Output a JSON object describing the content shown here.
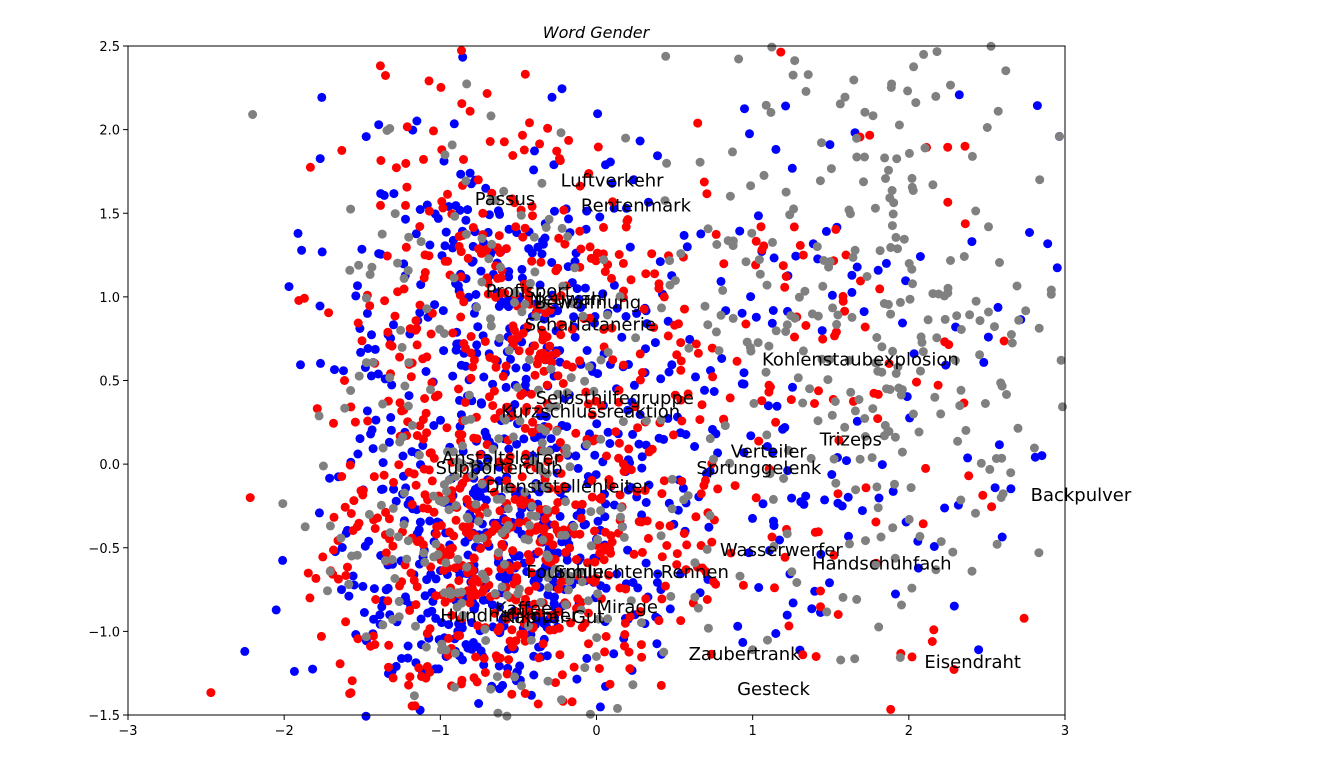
{
  "chart_data": {
    "type": "scatter",
    "title": "Word Gender",
    "xlabel": "",
    "ylabel": "",
    "xlim": [
      -3,
      3
    ],
    "ylim": [
      -1.5,
      2.5
    ],
    "x_ticks": [
      -3,
      -2,
      -1,
      0,
      1,
      2,
      3
    ],
    "y_ticks": [
      -1.5,
      -1.0,
      -0.5,
      0.0,
      0.5,
      1.0,
      1.5,
      2.0,
      2.5
    ],
    "x_tick_labels": [
      "−3",
      "−2",
      "−1",
      "0",
      "1",
      "2",
      "3"
    ],
    "y_tick_labels": [
      "−1.5",
      "−1.0",
      "−0.5",
      "0.0",
      "0.5",
      "1.0",
      "1.5",
      "2.0",
      "2.5"
    ],
    "grid": false,
    "series_colors": [
      "#0000ff",
      "#ff0000",
      "#808080"
    ],
    "series": [
      {
        "color": "#0000ff",
        "approx_count": 900
      },
      {
        "color": "#ff0000",
        "approx_count": 900
      },
      {
        "color": "#808080",
        "approx_count": 600
      }
    ],
    "annotations": [
      {
        "text": "Luftverkehr",
        "x": -0.23,
        "y": 1.66
      },
      {
        "text": "Passus",
        "x": -0.78,
        "y": 1.55
      },
      {
        "text": "Rentenmark",
        "x": -0.1,
        "y": 1.51
      },
      {
        "text": "Profisport",
        "x": -0.71,
        "y": 1.0
      },
      {
        "text": "Neuwahl",
        "x": -0.43,
        "y": 0.95
      },
      {
        "text": "Bewaffnung",
        "x": -0.4,
        "y": 0.93
      },
      {
        "text": "Scharlatanerie",
        "x": -0.46,
        "y": 0.8
      },
      {
        "text": "Kohlenstaubexplosion",
        "x": 1.06,
        "y": 0.59
      },
      {
        "text": "Selbsthilfegruppe",
        "x": -0.39,
        "y": 0.36
      },
      {
        "text": "Kurzschlussreaktion",
        "x": -0.61,
        "y": 0.28
      },
      {
        "text": "Trizeps",
        "x": 1.43,
        "y": 0.11
      },
      {
        "text": "Verteiler",
        "x": 0.86,
        "y": 0.04
      },
      {
        "text": "Anstaltsleiter",
        "x": -0.99,
        "y": 0.0
      },
      {
        "text": "Supporterclub",
        "x": -1.03,
        "y": -0.06
      },
      {
        "text": "Sprunggelenk",
        "x": 0.64,
        "y": -0.06
      },
      {
        "text": "Backpulver",
        "x": 2.78,
        "y": -0.22
      },
      {
        "text": "Dienststellenleiter",
        "x": -0.71,
        "y": -0.17
      },
      {
        "text": "Wasserwerfer",
        "x": 0.79,
        "y": -0.55
      },
      {
        "text": "Handschuhfach",
        "x": 1.38,
        "y": -0.63
      },
      {
        "text": "Fourmile",
        "x": -0.45,
        "y": -0.68
      },
      {
        "text": "Schluchten-Rennen",
        "x": -0.27,
        "y": -0.68
      },
      {
        "text": "Kaffee",
        "x": -0.65,
        "y": -0.9
      },
      {
        "text": "Mirage",
        "x": 0.0,
        "y": -0.89
      },
      {
        "text": "Hundhelikopter",
        "x": -1.0,
        "y": -0.94
      },
      {
        "text": "Kapital-Gut",
        "x": -0.6,
        "y": -0.95
      },
      {
        "text": "Zaubertrank",
        "x": 0.59,
        "y": -1.17
      },
      {
        "text": "Eisendraht",
        "x": 2.1,
        "y": -1.22
      },
      {
        "text": "Gesteck",
        "x": 0.9,
        "y": -1.38
      }
    ]
  }
}
